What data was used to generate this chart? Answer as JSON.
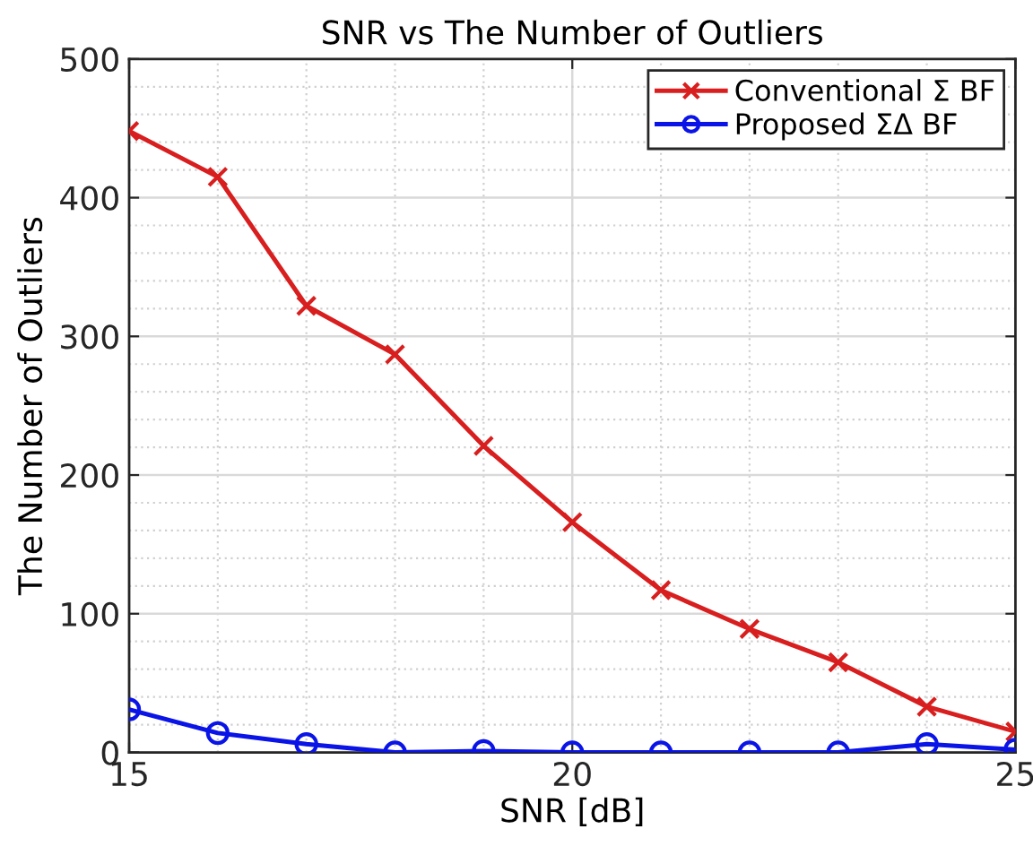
{
  "chart_data": {
    "type": "line",
    "title": "SNR vs The Number of Outliers",
    "xlabel": "SNR [dB]",
    "ylabel": "The Number of Outliers",
    "x": [
      15,
      16,
      17,
      18,
      19,
      20,
      21,
      22,
      23,
      24,
      25
    ],
    "series": [
      {
        "name": "Conventional Σ BF",
        "color": "#d81e1e",
        "marker": "cross",
        "values": [
          448,
          415,
          322,
          287,
          221,
          166,
          117,
          89,
          65,
          33,
          15
        ]
      },
      {
        "name": "Proposed ΣΔ BF",
        "color": "#0a14e6",
        "marker": "circle",
        "values": [
          31,
          14,
          6,
          0,
          1,
          0,
          0,
          0,
          0,
          6,
          2
        ]
      }
    ],
    "xlim": [
      15,
      25
    ],
    "xticks": [
      15,
      {
        "value": 16,
        "label": null
      },
      {
        "value": 17,
        "label": null
      },
      {
        "value": 18,
        "label": null
      },
      {
        "value": 19,
        "label": null
      },
      20,
      {
        "value": 21,
        "label": null
      },
      {
        "value": 22,
        "label": null
      },
      {
        "value": 23,
        "label": null
      },
      {
        "value": 24,
        "label": null
      },
      25
    ],
    "ylim": [
      0,
      500
    ],
    "yticks": [
      0,
      {
        "value": 20,
        "label": null
      },
      {
        "value": 40,
        "label": null
      },
      {
        "value": 60,
        "label": null
      },
      {
        "value": 80,
        "label": null
      },
      100,
      {
        "value": 120,
        "label": null
      },
      {
        "value": 140,
        "label": null
      },
      {
        "value": 160,
        "label": null
      },
      {
        "value": 180,
        "label": null
      },
      200,
      {
        "value": 220,
        "label": null
      },
      {
        "value": 240,
        "label": null
      },
      {
        "value": 260,
        "label": null
      },
      {
        "value": 280,
        "label": null
      },
      300,
      {
        "value": 320,
        "label": null
      },
      {
        "value": 340,
        "label": null
      },
      {
        "value": 360,
        "label": null
      },
      {
        "value": 380,
        "label": null
      },
      400,
      {
        "value": 420,
        "label": null
      },
      {
        "value": 440,
        "label": null
      },
      {
        "value": 460,
        "label": null
      },
      {
        "value": 480,
        "label": null
      },
      500
    ],
    "grid": true,
    "legend": "top right",
    "line_style": "solid"
  }
}
